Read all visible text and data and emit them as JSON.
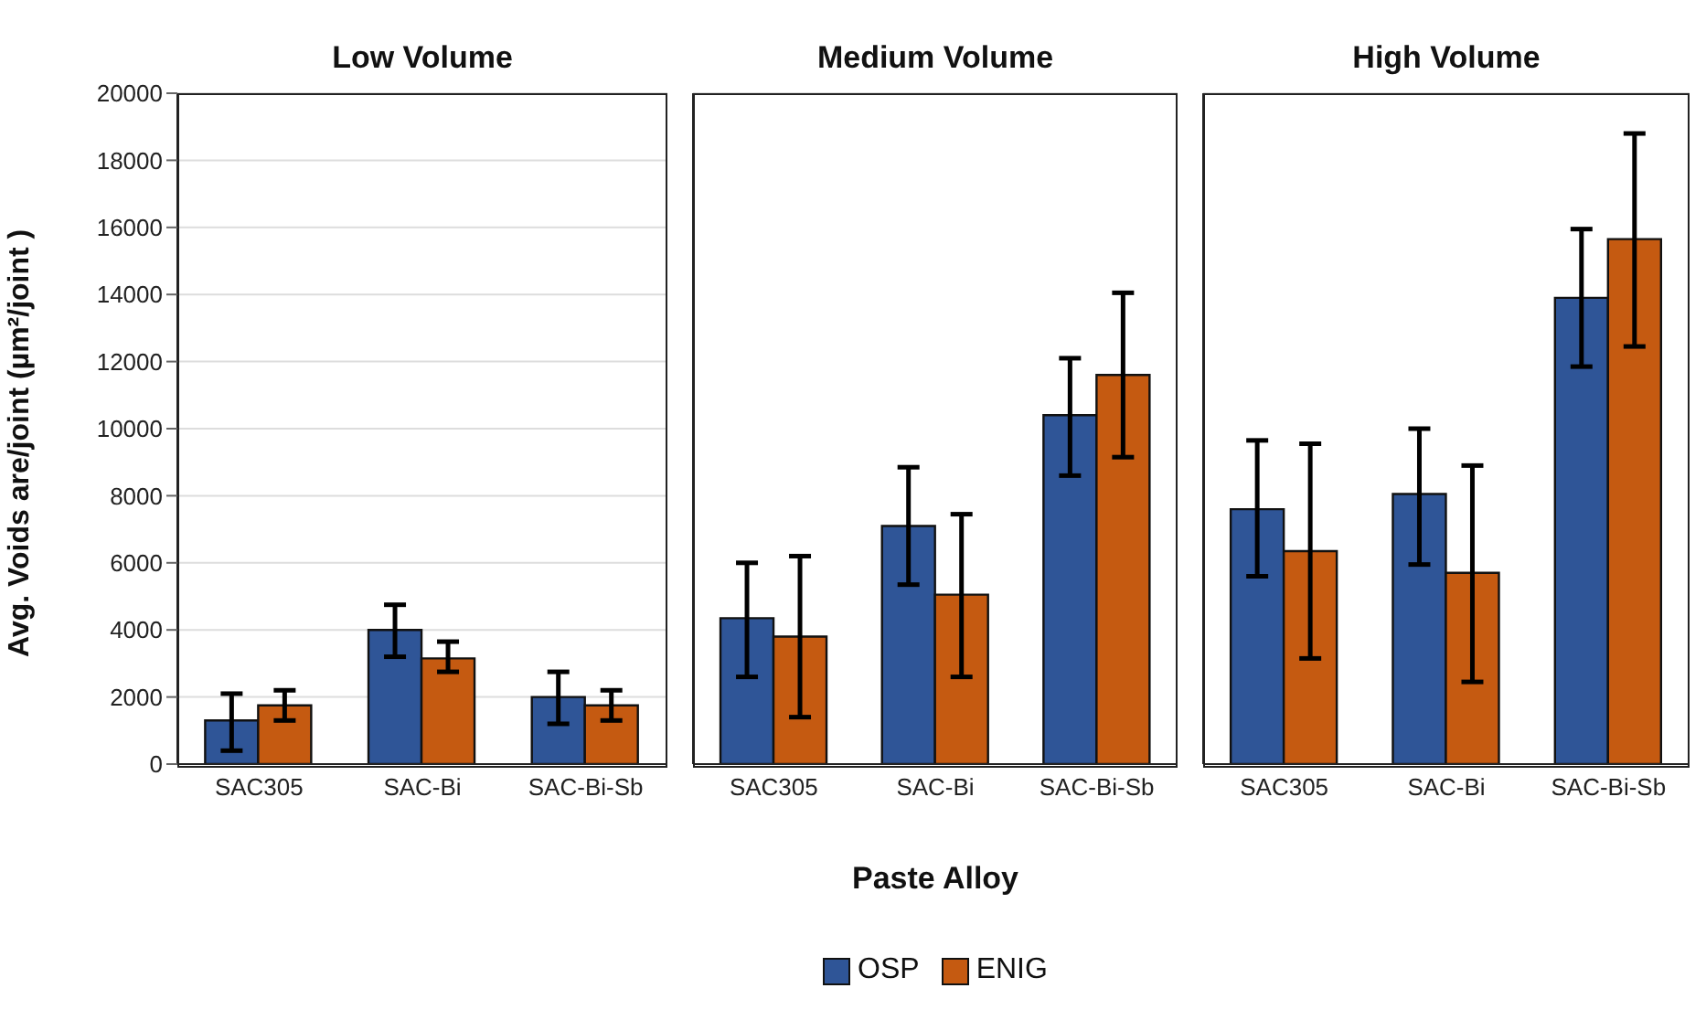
{
  "chart_data": [
    {
      "type": "bar",
      "title": "Low Volume",
      "ylabel": "Avg. Voids are/joint (µm²/joint )",
      "categories": [
        "SAC305",
        "SAC-Bi",
        "SAC-Bi-Sb"
      ],
      "series": [
        {
          "color": "#2f5597",
          "values": [
            1300,
            4000,
            2000
          ],
          "errors": [
            [
              400,
              2100
            ],
            [
              3200,
              4750
            ],
            [
              1200,
              2750
            ]
          ]
        },
        {
          "color": "#c55a11",
          "values": [
            1750,
            3150,
            1750
          ],
          "errors": [
            [
              1300,
              2200
            ],
            [
              2750,
              3650
            ],
            [
              1300,
              2200
            ]
          ]
        }
      ],
      "ylim": [
        0,
        20000
      ],
      "yticks": [
        0,
        2000,
        4000,
        6000,
        8000,
        10000,
        12000,
        14000,
        16000,
        18000,
        20000
      ],
      "grid": "y"
    },
    {
      "type": "bar",
      "title": "Medium Volume",
      "xlabel": "Paste Alloy",
      "categories": [
        "SAC305",
        "SAC-Bi",
        "SAC-Bi-Sb"
      ],
      "series": [
        {
          "name": "OSP",
          "color": "#2f5597",
          "values": [
            4350,
            7100,
            10400
          ],
          "errors": [
            [
              2600,
              6000
            ],
            [
              5350,
              8850
            ],
            [
              8600,
              12100
            ]
          ]
        },
        {
          "name": "ENIG",
          "color": "#c55a11",
          "values": [
            3800,
            5050,
            11600
          ],
          "errors": [
            [
              1400,
              6200
            ],
            [
              2600,
              7450
            ],
            [
              9150,
              14050
            ]
          ]
        }
      ],
      "ylim": [
        0,
        20000
      ],
      "yticks": [
        0,
        2000,
        4000,
        6000,
        8000,
        10000,
        12000,
        14000,
        16000,
        18000,
        20000
      ],
      "grid": "y",
      "tick_labels": "x",
      "legend": "bottom"
    },
    {
      "type": "bar",
      "title": "High Volume",
      "categories": [
        "SAC305",
        "SAC-Bi",
        "SAC-Bi-Sb"
      ],
      "series": [
        {
          "color": "#2f5597",
          "values": [
            7600,
            8050,
            13900
          ],
          "errors": [
            [
              5600,
              9650
            ],
            [
              5950,
              10000
            ],
            [
              11850,
              15950
            ]
          ]
        },
        {
          "color": "#c55a11",
          "values": [
            6350,
            5700,
            15650
          ],
          "errors": [
            [
              3150,
              9550
            ],
            [
              2450,
              8900
            ],
            [
              12450,
              18800
            ]
          ]
        }
      ],
      "ylim": [
        0,
        20000
      ],
      "yticks": [
        0,
        2000,
        4000,
        6000,
        8000,
        10000,
        12000,
        14000,
        16000,
        18000,
        20000
      ],
      "grid": "y",
      "tick_labels": "x"
    }
  ]
}
